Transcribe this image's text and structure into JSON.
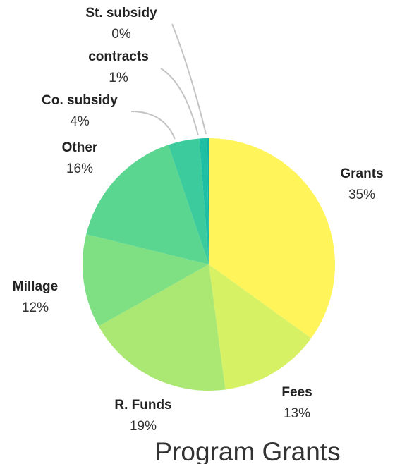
{
  "chart_data": {
    "type": "pie",
    "title": "Program Grants",
    "slices": [
      {
        "label": "Grants",
        "value": 35,
        "pct_label": "35%",
        "color": "#FFF55B"
      },
      {
        "label": "Fees",
        "value": 13,
        "pct_label": "13%",
        "color": "#D6F264"
      },
      {
        "label": "R. Funds",
        "value": 19,
        "pct_label": "19%",
        "color": "#AAE873"
      },
      {
        "label": "Millage",
        "value": 12,
        "pct_label": "12%",
        "color": "#7FE083"
      },
      {
        "label": "Other",
        "value": 16,
        "pct_label": "16%",
        "color": "#5BD690"
      },
      {
        "label": "Co. subsidy",
        "value": 4,
        "pct_label": "4%",
        "color": "#3BCB9C"
      },
      {
        "label": "contracts",
        "value": 1,
        "pct_label": "1%",
        "color": "#1FBFA4"
      },
      {
        "label": "St. subsidy",
        "value": 0.2,
        "pct_label": "0%",
        "color": "#10B3A6"
      }
    ]
  }
}
